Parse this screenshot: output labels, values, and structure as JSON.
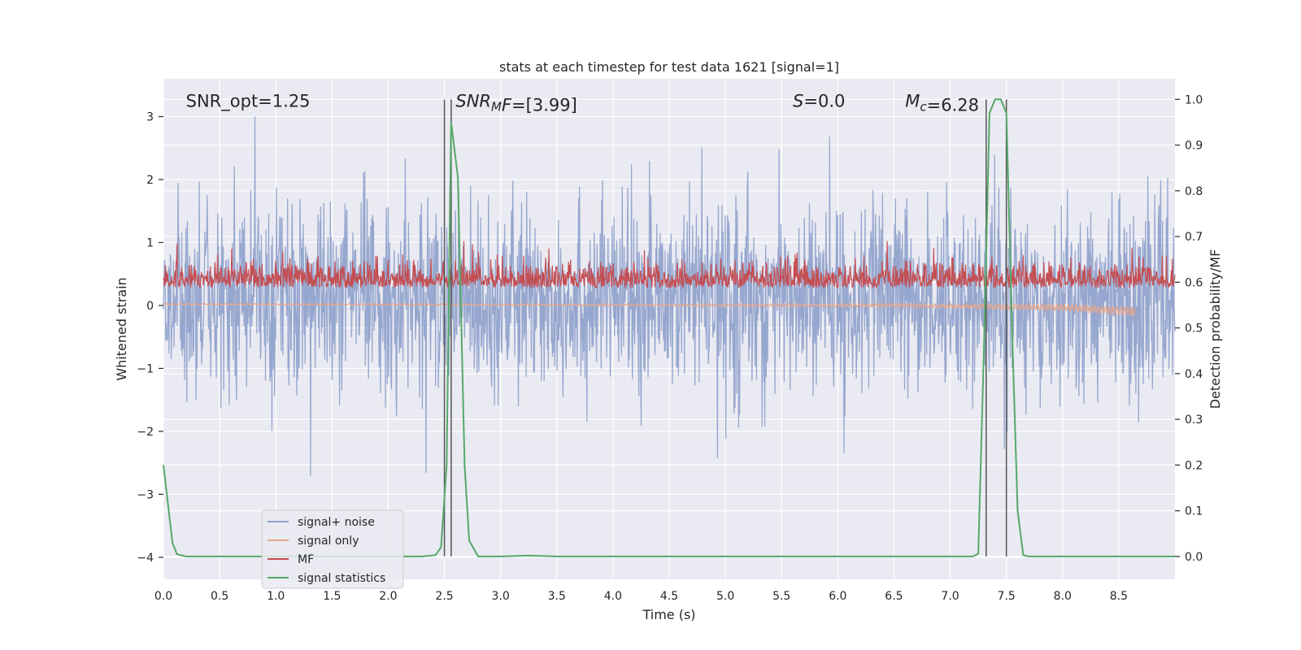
{
  "chart_data": {
    "type": "line",
    "title": "stats at each timestep for test data 1621 [signal=1]",
    "xlabel": "Time (s)",
    "ylabel": "Whitened strain",
    "ylabel_right": "Detection probability/MF",
    "xlim": [
      0,
      9
    ],
    "ylim": [
      -4.35,
      3.6
    ],
    "ylim_right": [
      -0.05,
      1.045
    ],
    "x_ticks": [
      0.0,
      0.5,
      1.0,
      1.5,
      2.0,
      2.5,
      3.0,
      3.5,
      4.0,
      4.5,
      5.0,
      5.5,
      6.0,
      6.5,
      7.0,
      7.5,
      8.0,
      8.5
    ],
    "x_tick_labels": [
      "0.0",
      "0.5",
      "1.0",
      "1.5",
      "2.0",
      "2.5",
      "3.0",
      "3.5",
      "4.0",
      "4.5",
      "5.0",
      "5.5",
      "6.0",
      "6.5",
      "7.0",
      "7.5",
      "8.0",
      "8.5"
    ],
    "y_ticks": [
      3,
      2,
      1,
      0,
      -1,
      -2,
      -3,
      -4
    ],
    "y_tick_labels": [
      "3",
      "2",
      "1",
      "0",
      "−1",
      "−2",
      "−3",
      "−4"
    ],
    "y_ticks_right": [
      1.0,
      0.9,
      0.8,
      0.7,
      0.6,
      0.5,
      0.4,
      0.3,
      0.2,
      0.1,
      0.0
    ],
    "y_tick_labels_right": [
      "1.0",
      "0.9",
      "0.8",
      "0.7",
      "0.6",
      "0.5",
      "0.4",
      "0.3",
      "0.2",
      "0.1",
      "0.0"
    ],
    "grid": true,
    "legend_position": "bottom-left",
    "annotations": [
      {
        "x": 0.2,
        "y_frac": 0.955,
        "parts": [
          {
            "t": "SNR_opt=1.25",
            "style": "normal"
          }
        ]
      },
      {
        "x": 2.6,
        "y_frac": 0.955,
        "parts": [
          {
            "t": "SNR",
            "style": "italic"
          },
          {
            "t": "M",
            "style": "italic-sub"
          },
          {
            "t": "F",
            "style": "italic"
          },
          {
            "t": "=[3.99]",
            "style": "normal"
          }
        ]
      },
      {
        "x": 5.6,
        "y_frac": 0.955,
        "parts": [
          {
            "t": "S",
            "style": "italic"
          },
          {
            "t": "=0.0",
            "style": "normal"
          }
        ]
      },
      {
        "x": 6.6,
        "y_frac": 0.955,
        "parts": [
          {
            "t": "M",
            "style": "italic"
          },
          {
            "t": "c",
            "style": "italic-sub"
          },
          {
            "t": "=6.28",
            "style": "normal"
          }
        ]
      }
    ],
    "vertical_markers": [
      2.5,
      2.56,
      7.32,
      7.5
    ],
    "series": [
      {
        "name": "signal+ noise",
        "color": "#8da0cb",
        "axis": "left",
        "kind": "noise",
        "x_range": [
          0,
          9
        ],
        "typical_range": [
          -1.8,
          2.1
        ],
        "max": 3.0,
        "min": -3.3
      },
      {
        "name": "signal only",
        "color": "#e8a58a",
        "axis": "left",
        "kind": "chirp",
        "x_range": [
          0,
          8.65
        ],
        "values_approx": [
          [
            0,
            0.02
          ],
          [
            6.5,
            0.0
          ],
          [
            8.0,
            -0.03
          ],
          [
            8.65,
            -0.1
          ]
        ]
      },
      {
        "name": "MF",
        "color": "#c44e52",
        "axis": "right",
        "kind": "noise",
        "x_range": [
          0,
          9
        ],
        "mean": 0.6,
        "typical_range": [
          0.55,
          0.7
        ],
        "max": 0.69
      },
      {
        "name": "signal statistics",
        "color": "#55a868",
        "axis": "right",
        "kind": "line",
        "x": [
          0.0,
          0.08,
          0.12,
          0.2,
          0.5,
          1.0,
          1.5,
          2.0,
          2.3,
          2.42,
          2.47,
          2.52,
          2.56,
          2.62,
          2.68,
          2.72,
          2.8,
          3.0,
          3.25,
          3.5,
          4.0,
          5.0,
          6.0,
          7.0,
          7.2,
          7.25,
          7.3,
          7.35,
          7.4,
          7.45,
          7.5,
          7.55,
          7.6,
          7.65,
          7.7,
          8.0,
          9.0
        ],
        "values": [
          0.2,
          0.03,
          0.005,
          0.0,
          0.0,
          0.0,
          0.0,
          0.0,
          0.0,
          0.003,
          0.02,
          0.2,
          0.95,
          0.83,
          0.2,
          0.035,
          0.0,
          0.0,
          0.002,
          0.0,
          0.0,
          0.0,
          0.0,
          0.0,
          0.0,
          0.006,
          0.45,
          0.97,
          1.0,
          1.0,
          0.97,
          0.5,
          0.1,
          0.003,
          0.0,
          0.0,
          0.0
        ]
      }
    ]
  }
}
